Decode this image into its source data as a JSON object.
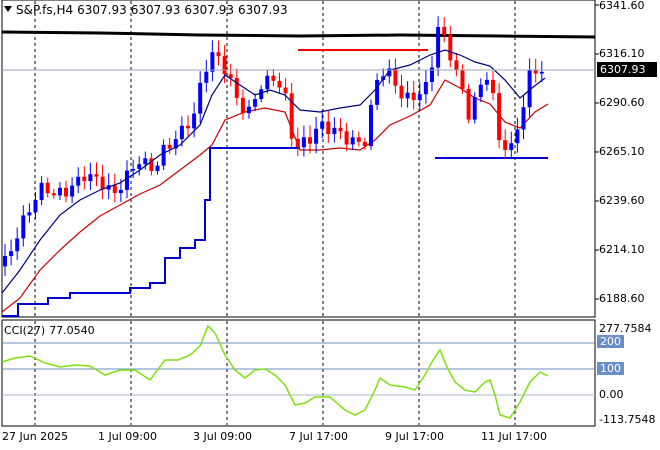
{
  "header": {
    "symbol": "S&P.fs,H4",
    "open": "6307.93",
    "high": "6307.93",
    "low": "6307.93",
    "close": "6307.93"
  },
  "price_axis": {
    "labels": [
      "6341.60",
      "6316.10",
      "6290.60",
      "6265.10",
      "6239.60",
      "6214.10",
      "6188.60"
    ],
    "current_price": "6307.93"
  },
  "cci_panel": {
    "indicator": "CCI(27)",
    "value": "77.0540",
    "axis_labels": [
      "277.7584",
      "200",
      "100",
      "0.00",
      "-113.7548"
    ]
  },
  "time_axis": {
    "labels": [
      "27 Jun 2025",
      "1 Jul 09:00",
      "3 Jul 09:00",
      "7 Jul 17:00",
      "9 Jul 17:00",
      "11 Jul 17:00"
    ]
  },
  "colors": {
    "bull_candle": "#0000ff",
    "bear_candle": "#ff0000",
    "ema_fast": "#000080",
    "ema_slow": "#cc0000",
    "long_ma": "#000000",
    "support_line": "#0000cc",
    "resistance_line": "#ff0000",
    "cci_line": "#7fe010",
    "cci_level": "#6a8fc6"
  }
}
